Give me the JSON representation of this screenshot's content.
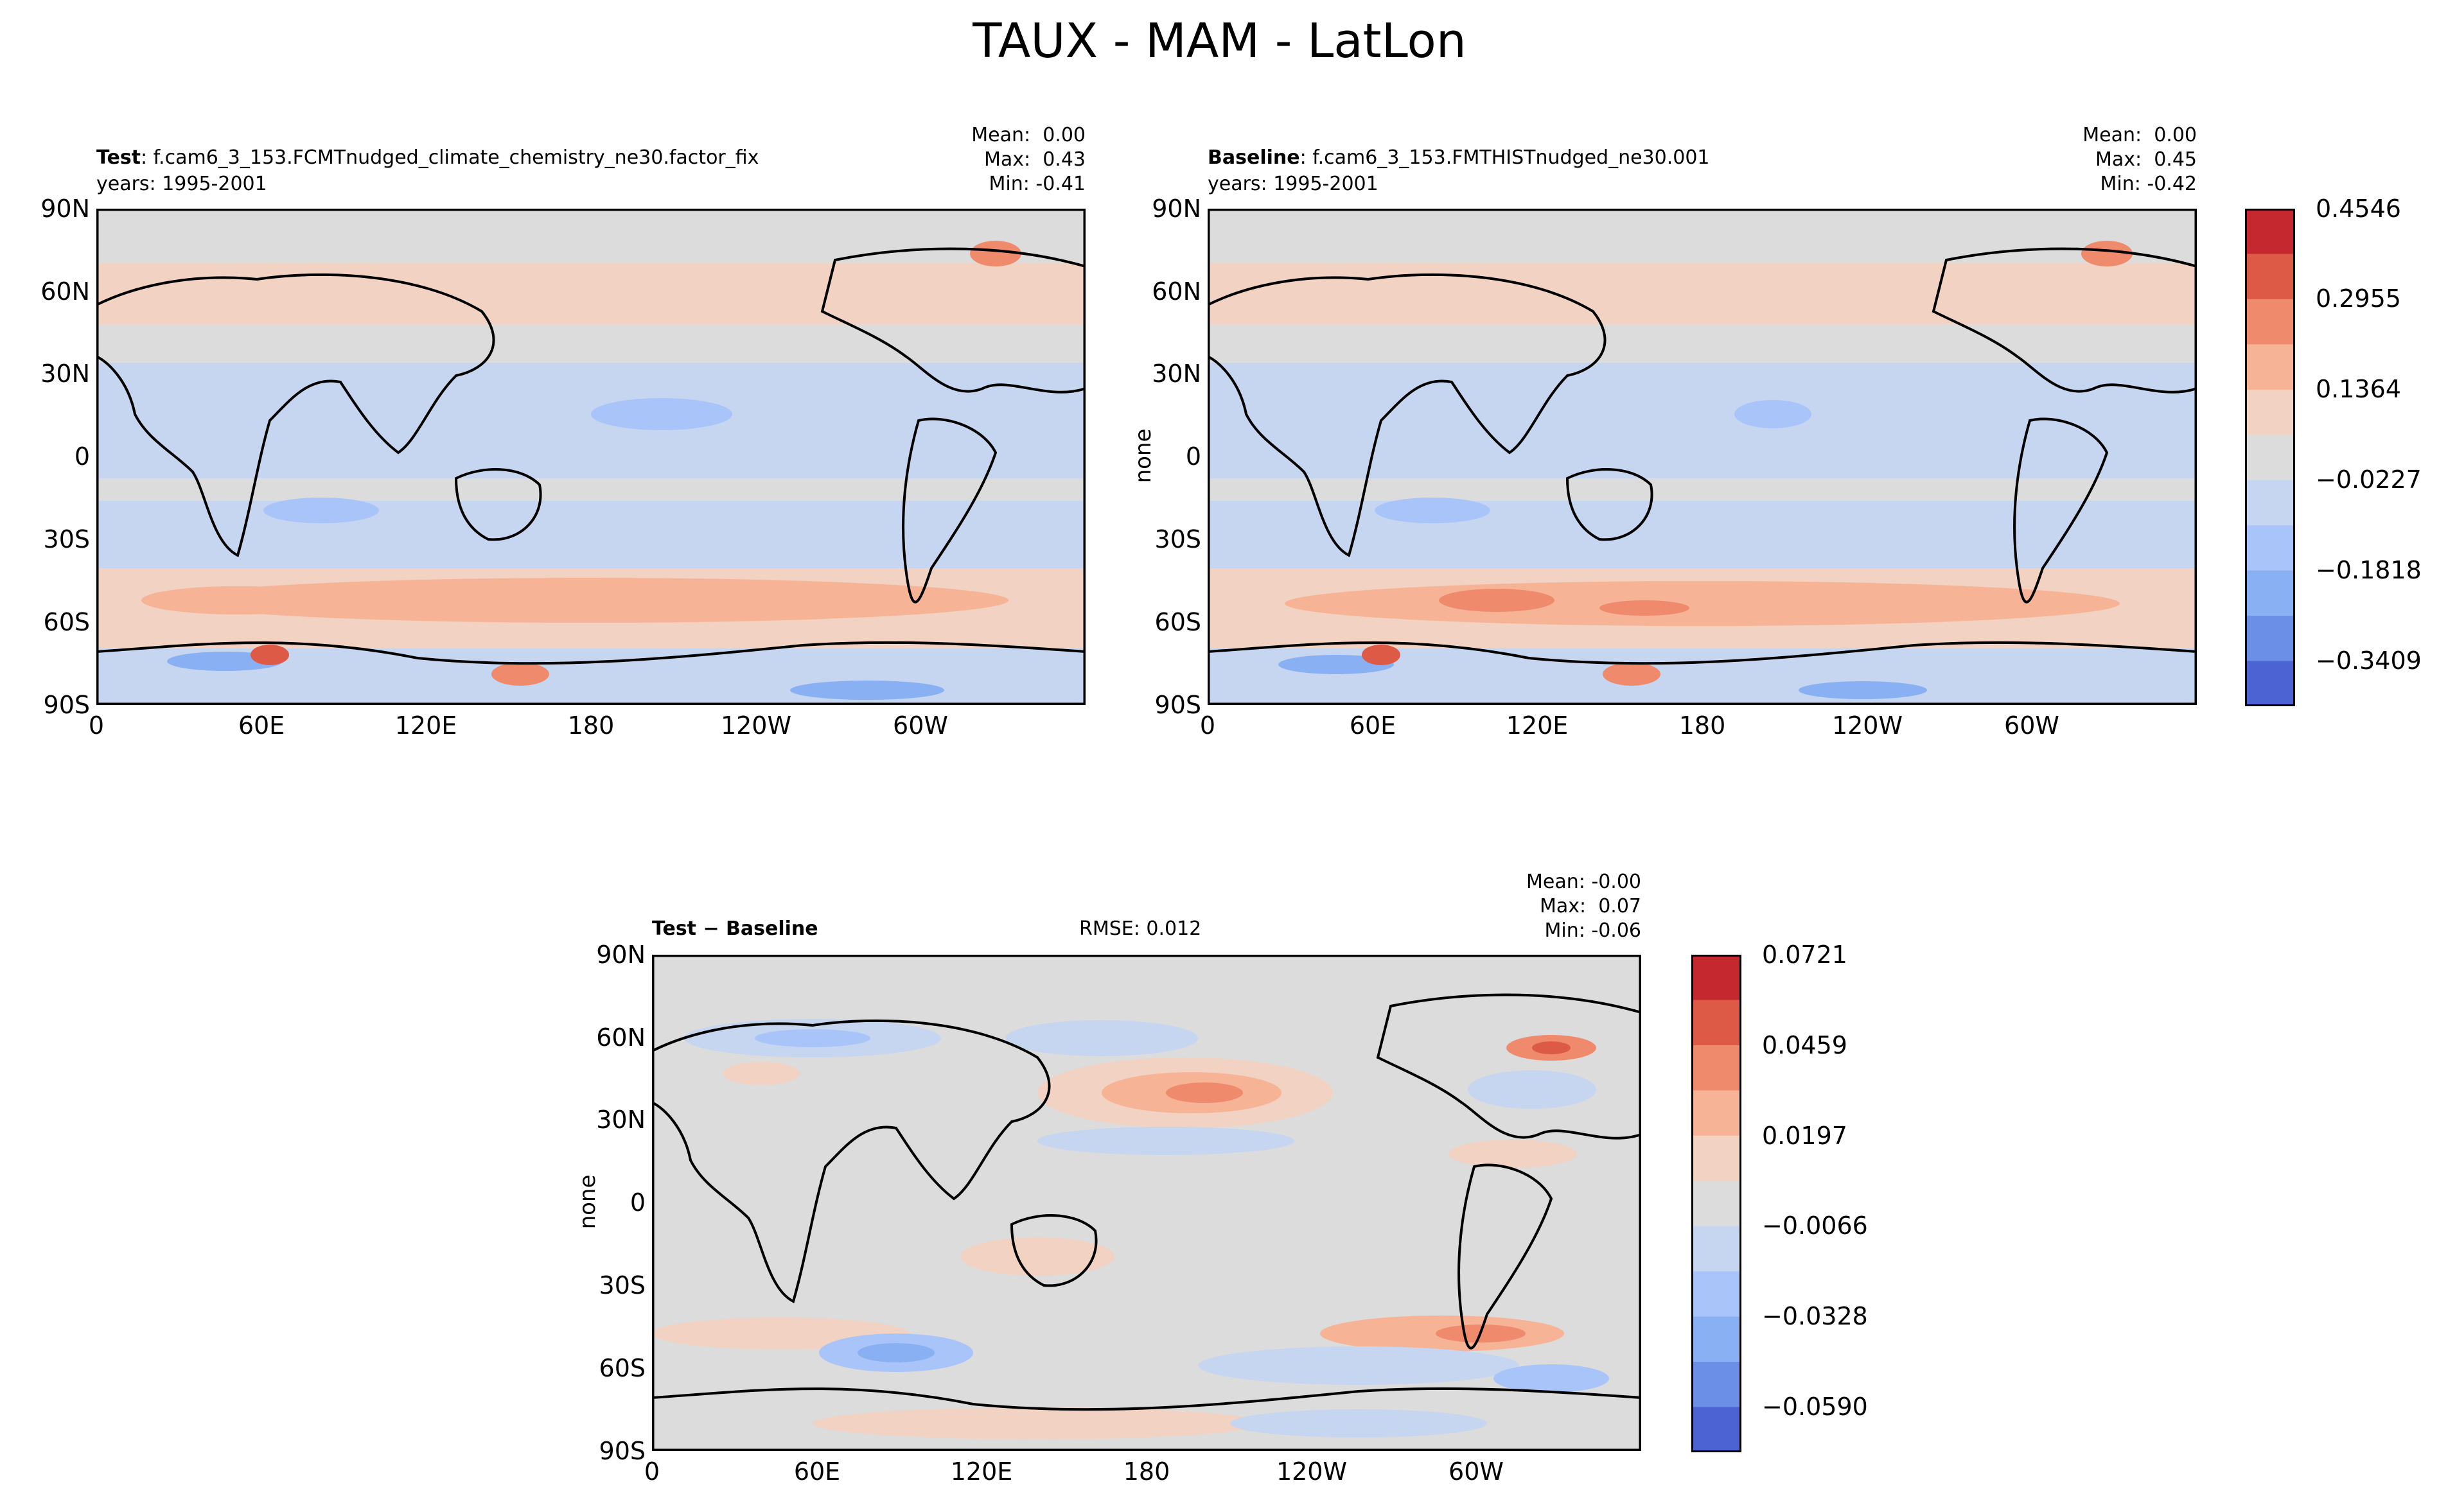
{
  "figure_title": "TAUX - MAM - LatLon",
  "chart_data": [
    {
      "type": "heatmap",
      "panel": "test",
      "title_bold": "Test",
      "title_rest": ": f.cam6_3_153.FCMTnudged_climate_chemistry_ne30.factor_fix",
      "subtitle": "years: 1995-2001",
      "stats": {
        "mean": "Mean:  0.00",
        "max": "Max:  0.43",
        "min": "Min: -0.41"
      },
      "ylabel": "",
      "xticks": [
        "0",
        "60E",
        "120E",
        "180",
        "120W",
        "60W"
      ],
      "yticks": [
        "90N",
        "60N",
        "30N",
        "0",
        "30S",
        "60S",
        "90S"
      ],
      "x_range": [
        0,
        360
      ],
      "y_range": [
        -90,
        90
      ],
      "max": 0.43,
      "min": -0.41,
      "mean": 0.0
    },
    {
      "type": "heatmap",
      "panel": "baseline",
      "title_bold": "Baseline",
      "title_rest": ": f.cam6_3_153.FMTHISTnudged_ne30.001",
      "subtitle": "years: 1995-2001",
      "stats": {
        "mean": "Mean:  0.00",
        "max": "Max:  0.45",
        "min": "Min: -0.42"
      },
      "ylabel": "none",
      "xticks": [
        "0",
        "60E",
        "120E",
        "180",
        "120W",
        "60W"
      ],
      "yticks": [
        "90N",
        "60N",
        "30N",
        "0",
        "30S",
        "60S",
        "90S"
      ],
      "x_range": [
        0,
        360
      ],
      "y_range": [
        -90,
        90
      ],
      "max": 0.45,
      "min": -0.42,
      "mean": 0.0
    },
    {
      "type": "heatmap",
      "panel": "difference",
      "title_bold": "Test − Baseline",
      "title_rest": "",
      "subtitle": "",
      "rmse": "RMSE: 0.012",
      "stats": {
        "mean": "Mean: -0.00",
        "max": "Max:  0.07",
        "min": "Min: -0.06"
      },
      "ylabel": "none",
      "xticks": [
        "0",
        "60E",
        "120E",
        "180",
        "120W",
        "60W"
      ],
      "yticks": [
        "90N",
        "60N",
        "30N",
        "0",
        "30S",
        "60S",
        "90S"
      ],
      "x_range": [
        0,
        360
      ],
      "y_range": [
        -90,
        90
      ],
      "max": 0.07,
      "min": -0.06,
      "mean": -0.0,
      "rmse_value": 0.012
    }
  ],
  "colorbars": {
    "main": {
      "ticks": [
        "0.4546",
        "0.2955",
        "0.1364",
        "−0.0227",
        "−0.1818",
        "−0.3409"
      ],
      "colors": [
        "#c5282e",
        "#dd5a47",
        "#ef8a6c",
        "#f6b396",
        "#f2d2c2",
        "#dddcdc",
        "#c6d5f0",
        "#a9c4f8",
        "#8ab0f4",
        "#6b8ee6",
        "#4b63d3"
      ]
    },
    "diff": {
      "ticks": [
        "0.0721",
        "0.0459",
        "0.0197",
        "−0.0066",
        "−0.0328",
        "−0.0590"
      ],
      "colors": [
        "#c5282e",
        "#dd5a47",
        "#ef8a6c",
        "#f6b396",
        "#f2d2c2",
        "#dddcdc",
        "#c6d5f0",
        "#a9c4f8",
        "#8ab0f4",
        "#6b8ee6",
        "#4b63d3"
      ]
    }
  }
}
